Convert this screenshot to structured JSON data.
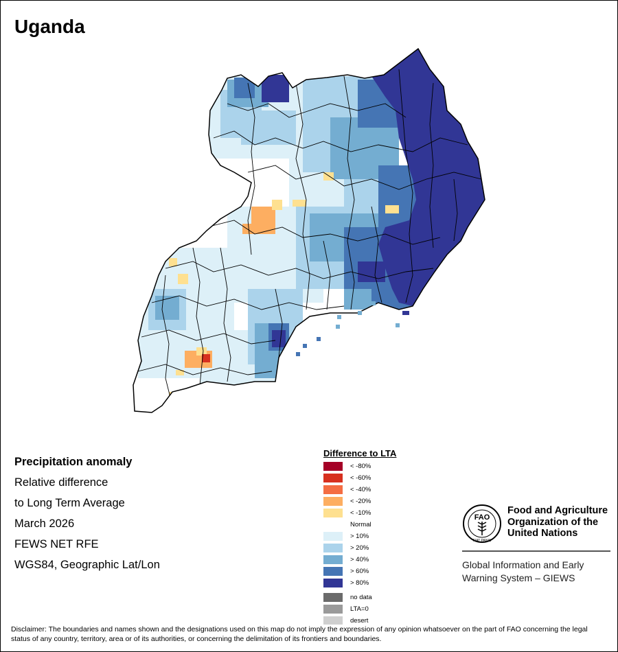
{
  "country": "Uganda",
  "info": {
    "heading": "Precipitation anomaly",
    "line1": "Relative difference",
    "line2": "to Long Term Average",
    "period": "March 2026",
    "dataset": "FEWS NET RFE",
    "projection": "WGS84, Geographic Lat/Lon"
  },
  "legend": {
    "title": "Difference to LTA",
    "items": [
      {
        "label": "< -80%",
        "color": "#a50026"
      },
      {
        "label": "< -60%",
        "color": "#d7301f"
      },
      {
        "label": "< -40%",
        "color": "#f46d43"
      },
      {
        "label": "< -20%",
        "color": "#fdae61"
      },
      {
        "label": "< -10%",
        "color": "#fee090"
      },
      {
        "label": "Normal",
        "color": "#ffffff"
      },
      {
        "label": "> 10%",
        "color": "#ddf0f8"
      },
      {
        "label": "> 20%",
        "color": "#abd3eb"
      },
      {
        "label": "> 40%",
        "color": "#74add1"
      },
      {
        "label": "> 60%",
        "color": "#4575b4"
      },
      {
        "label": "> 80%",
        "color": "#313695"
      }
    ],
    "extra": [
      {
        "label": "no data",
        "color": "#6b6b6b"
      },
      {
        "label": "LTA=0",
        "color": "#9a9a9a"
      },
      {
        "label": "desert",
        "color": "#cfcfcf"
      }
    ]
  },
  "organization": {
    "name_line1": "Food and Agriculture",
    "name_line2": "Organization of the",
    "name_line3": "United Nations",
    "logo_text": "FAO",
    "logo_motto": "FIAT PANIS",
    "system_line1": "Global Information and Early",
    "system_line2": "Warning System – GIEWS"
  },
  "disclaimer": "Disclaimer: The boundaries and names shown and the designations used on this map do not imply the expression of any opinion whatsoever on the part of FAO concerning the legal status of any country, territory, area or of its authorities, or concerning the delimitation of its frontiers and boundaries."
}
